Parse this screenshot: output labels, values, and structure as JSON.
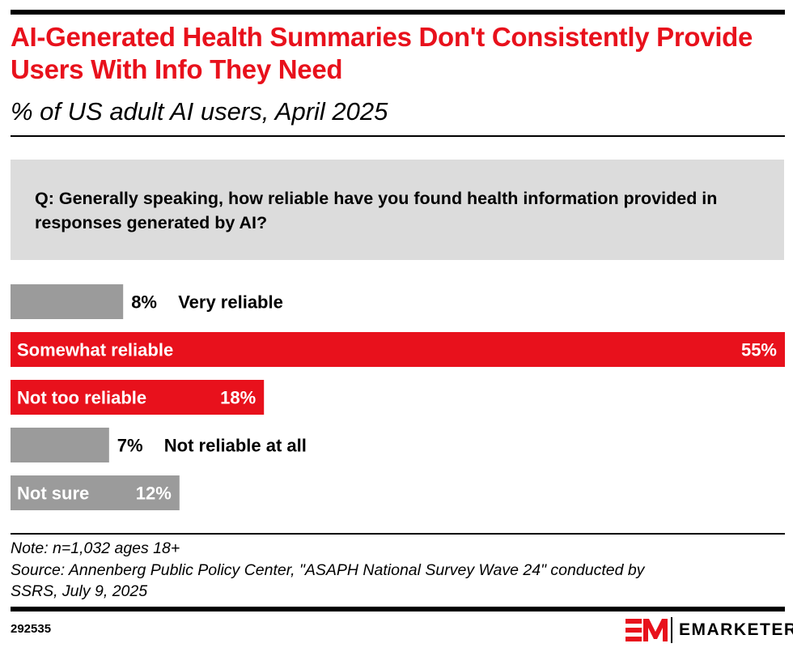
{
  "header": {
    "title": "AI-Generated Health Summaries Don't Consistently Provide Users With Info They Need",
    "subtitle": "% of US adult AI users, April 2025"
  },
  "question": "Q: Generally speaking, how reliable have you found health information provided in responses generated by AI?",
  "chart_data": {
    "type": "bar",
    "orientation": "horizontal",
    "title": "AI-Generated Health Summaries Don't Consistently Provide Users With Info They Need",
    "subtitle": "% of US adult AI users, April 2025",
    "xlabel": "",
    "ylabel": "",
    "unit": "%",
    "xlim": [
      0,
      55
    ],
    "grid": false,
    "legend": "none",
    "categories": [
      "Very reliable",
      "Somewhat reliable",
      "Not too reliable",
      "Not reliable at all",
      "Not sure"
    ],
    "values": [
      8,
      55,
      18,
      7,
      12
    ],
    "value_labels": [
      "8%",
      "55%",
      "18%",
      "7%",
      "12%"
    ],
    "colors": [
      "#9b9b9b",
      "#e8111c",
      "#e8111c",
      "#9b9b9b",
      "#9b9b9b"
    ]
  },
  "footer": {
    "note": "Note: n=1,032 ages 18+",
    "source_line1": "Source: Annenberg Public Policy Center, \"ASAPH National Survey Wave 24\" conducted by",
    "source_line2": "SSRS, July 9, 2025",
    "chart_id": "292535",
    "brand": "EMARKETER"
  },
  "colors": {
    "accent_red": "#e8111c",
    "bar_gray": "#9b9b9b",
    "question_box": "#dcdcdc"
  }
}
